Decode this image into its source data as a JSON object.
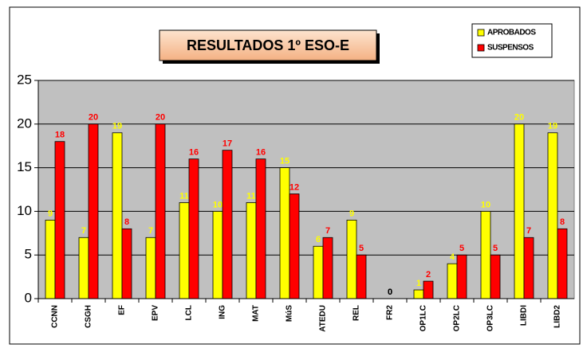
{
  "chart_data": {
    "type": "bar",
    "title": "RESULTADOS 1º ESO-E",
    "categories": [
      "CCNN",
      "CSGH",
      "EF",
      "EPV",
      "LCL",
      "ING",
      "MAT",
      "MúS",
      "ATEDU",
      "REL",
      "FR2",
      "OP1LC",
      "OP2LC",
      "OP3LC",
      "LIBDI",
      "LIBD2"
    ],
    "series": [
      {
        "name": "APROBADOS",
        "color": "#ffff00",
        "label_color": "#ffff00",
        "values": [
          9,
          7,
          19,
          7,
          11,
          10,
          11,
          15,
          6,
          9,
          0,
          1,
          4,
          10,
          20,
          19
        ]
      },
      {
        "name": "SUSPENSOS",
        "color": "#ff0000",
        "label_color": "#ff0000",
        "values": [
          18,
          20,
          8,
          20,
          16,
          17,
          16,
          12,
          7,
          5,
          0,
          2,
          5,
          5,
          7,
          8
        ]
      }
    ],
    "ylim": [
      0,
      25
    ],
    "yticks": [
      0,
      5,
      10,
      15,
      20,
      25
    ],
    "grid": true,
    "legend": "top-right"
  }
}
